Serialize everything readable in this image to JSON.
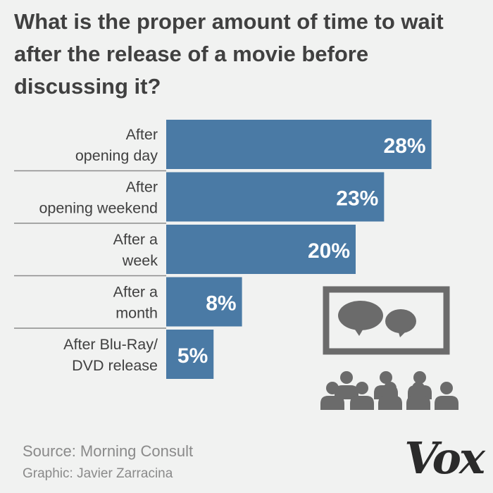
{
  "title": "What is the proper amount of time to wait after the release of a movie before discussing it?",
  "source": "Source: Morning Consult",
  "credit": "Graphic: Javier Zarracina",
  "logo": "Vox",
  "colors": {
    "bar": "#4a7aa5",
    "text": "#404040",
    "muted": "#8a8a8a",
    "icon": "#6b6b6b",
    "background": "#f1f2f1"
  },
  "icons": [
    "movie-screen-icon",
    "speech-bubble-icon",
    "audience-icon"
  ],
  "chart_data": {
    "type": "bar",
    "orientation": "horizontal",
    "categories": [
      [
        "After",
        "opening day"
      ],
      [
        "After",
        "opening weekend"
      ],
      [
        "After a",
        "week"
      ],
      [
        "After a",
        "month"
      ],
      [
        "After Blu-Ray/",
        "DVD release"
      ]
    ],
    "values": [
      28,
      23,
      20,
      8,
      5
    ],
    "value_labels": [
      "28%",
      "23%",
      "20%",
      "8%",
      "5%"
    ],
    "unit": "%"
  }
}
